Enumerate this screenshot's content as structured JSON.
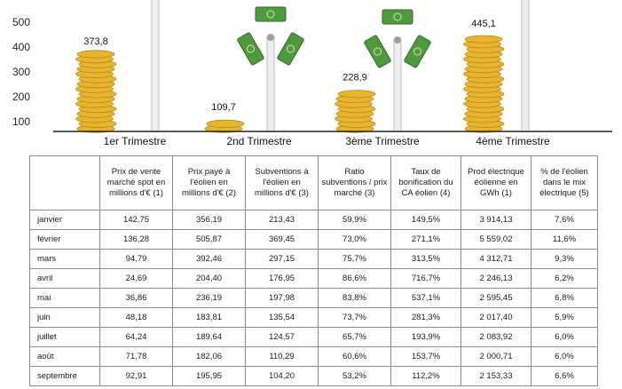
{
  "chart_data": {
    "type": "bar",
    "categories": [
      "1er Trimestre",
      "2nd Trimestre",
      "3ème Trimestre",
      "4ème Trimestre"
    ],
    "values": [
      373.8,
      109.7,
      228.9,
      445.1
    ],
    "value_labels": [
      "373,8",
      "109,7",
      "228,9",
      "445,1"
    ],
    "y_ticks": [
      "100",
      "200",
      "300",
      "400",
      "500"
    ],
    "ylim": [
      60,
      520
    ],
    "bar_style": "stack of gold coins",
    "decorations": "wind turbines with banknote blades",
    "colors": {
      "coin": "#e7b52c",
      "coin_dark": "#b8861a",
      "banknote": "#4f9a3c",
      "mast": "#d9d9d9",
      "axis": "#222222"
    }
  },
  "table": {
    "headers": [
      "",
      "Prix de vente marché spot en millions d'€ (1)",
      "Prix payé à l'éolien en millions d'€ (2)",
      "Subventions  à l'éolien en millions d'€ (3)",
      "Ratio subventions / prix  marché (3)",
      "Taux de bonification du CA éolien (4)",
      "Prod électrique éolienne en GWh (1)",
      "% de l'éolien dans le mix électrique (5)"
    ],
    "rows": [
      [
        "janvier",
        "142,75",
        "356,19",
        "213,43",
        "59,9%",
        "149,5%",
        "3 914,13",
        "7,6%"
      ],
      [
        "février",
        "136,28",
        "505,87",
        "369,45",
        "73,0%",
        "271,1%",
        "5 559,02",
        "11,6%"
      ],
      [
        "mars",
        "94,79",
        "392,46",
        "297,15",
        "75,7%",
        "313,5%",
        "4 312,71",
        "9,3%"
      ],
      [
        "avril",
        "24,69",
        "204,40",
        "176,95",
        "86,6%",
        "716,7%",
        "2 246,13",
        "6,2%"
      ],
      [
        "mai",
        "36,86",
        "236,19",
        "197,98",
        "83,8%",
        "537,1%",
        "2 595,45",
        "6,8%"
      ],
      [
        "juin",
        "48,18",
        "183,81",
        "135,54",
        "73,7%",
        "281,3%",
        "2 017,40",
        "5,9%"
      ],
      [
        "juillet",
        "64,24",
        "189,64",
        "124,57",
        "65,7%",
        "193,9%",
        "2 083,92",
        "6,0%"
      ],
      [
        "août",
        "71,78",
        "182,06",
        "110,29",
        "60,6%",
        "153,7%",
        "2 000,71",
        "6,0%"
      ],
      [
        "septembre",
        "92,91",
        "195,95",
        "104,20",
        "53,2%",
        "112,2%",
        "2 153,33",
        "6,6%"
      ]
    ]
  }
}
